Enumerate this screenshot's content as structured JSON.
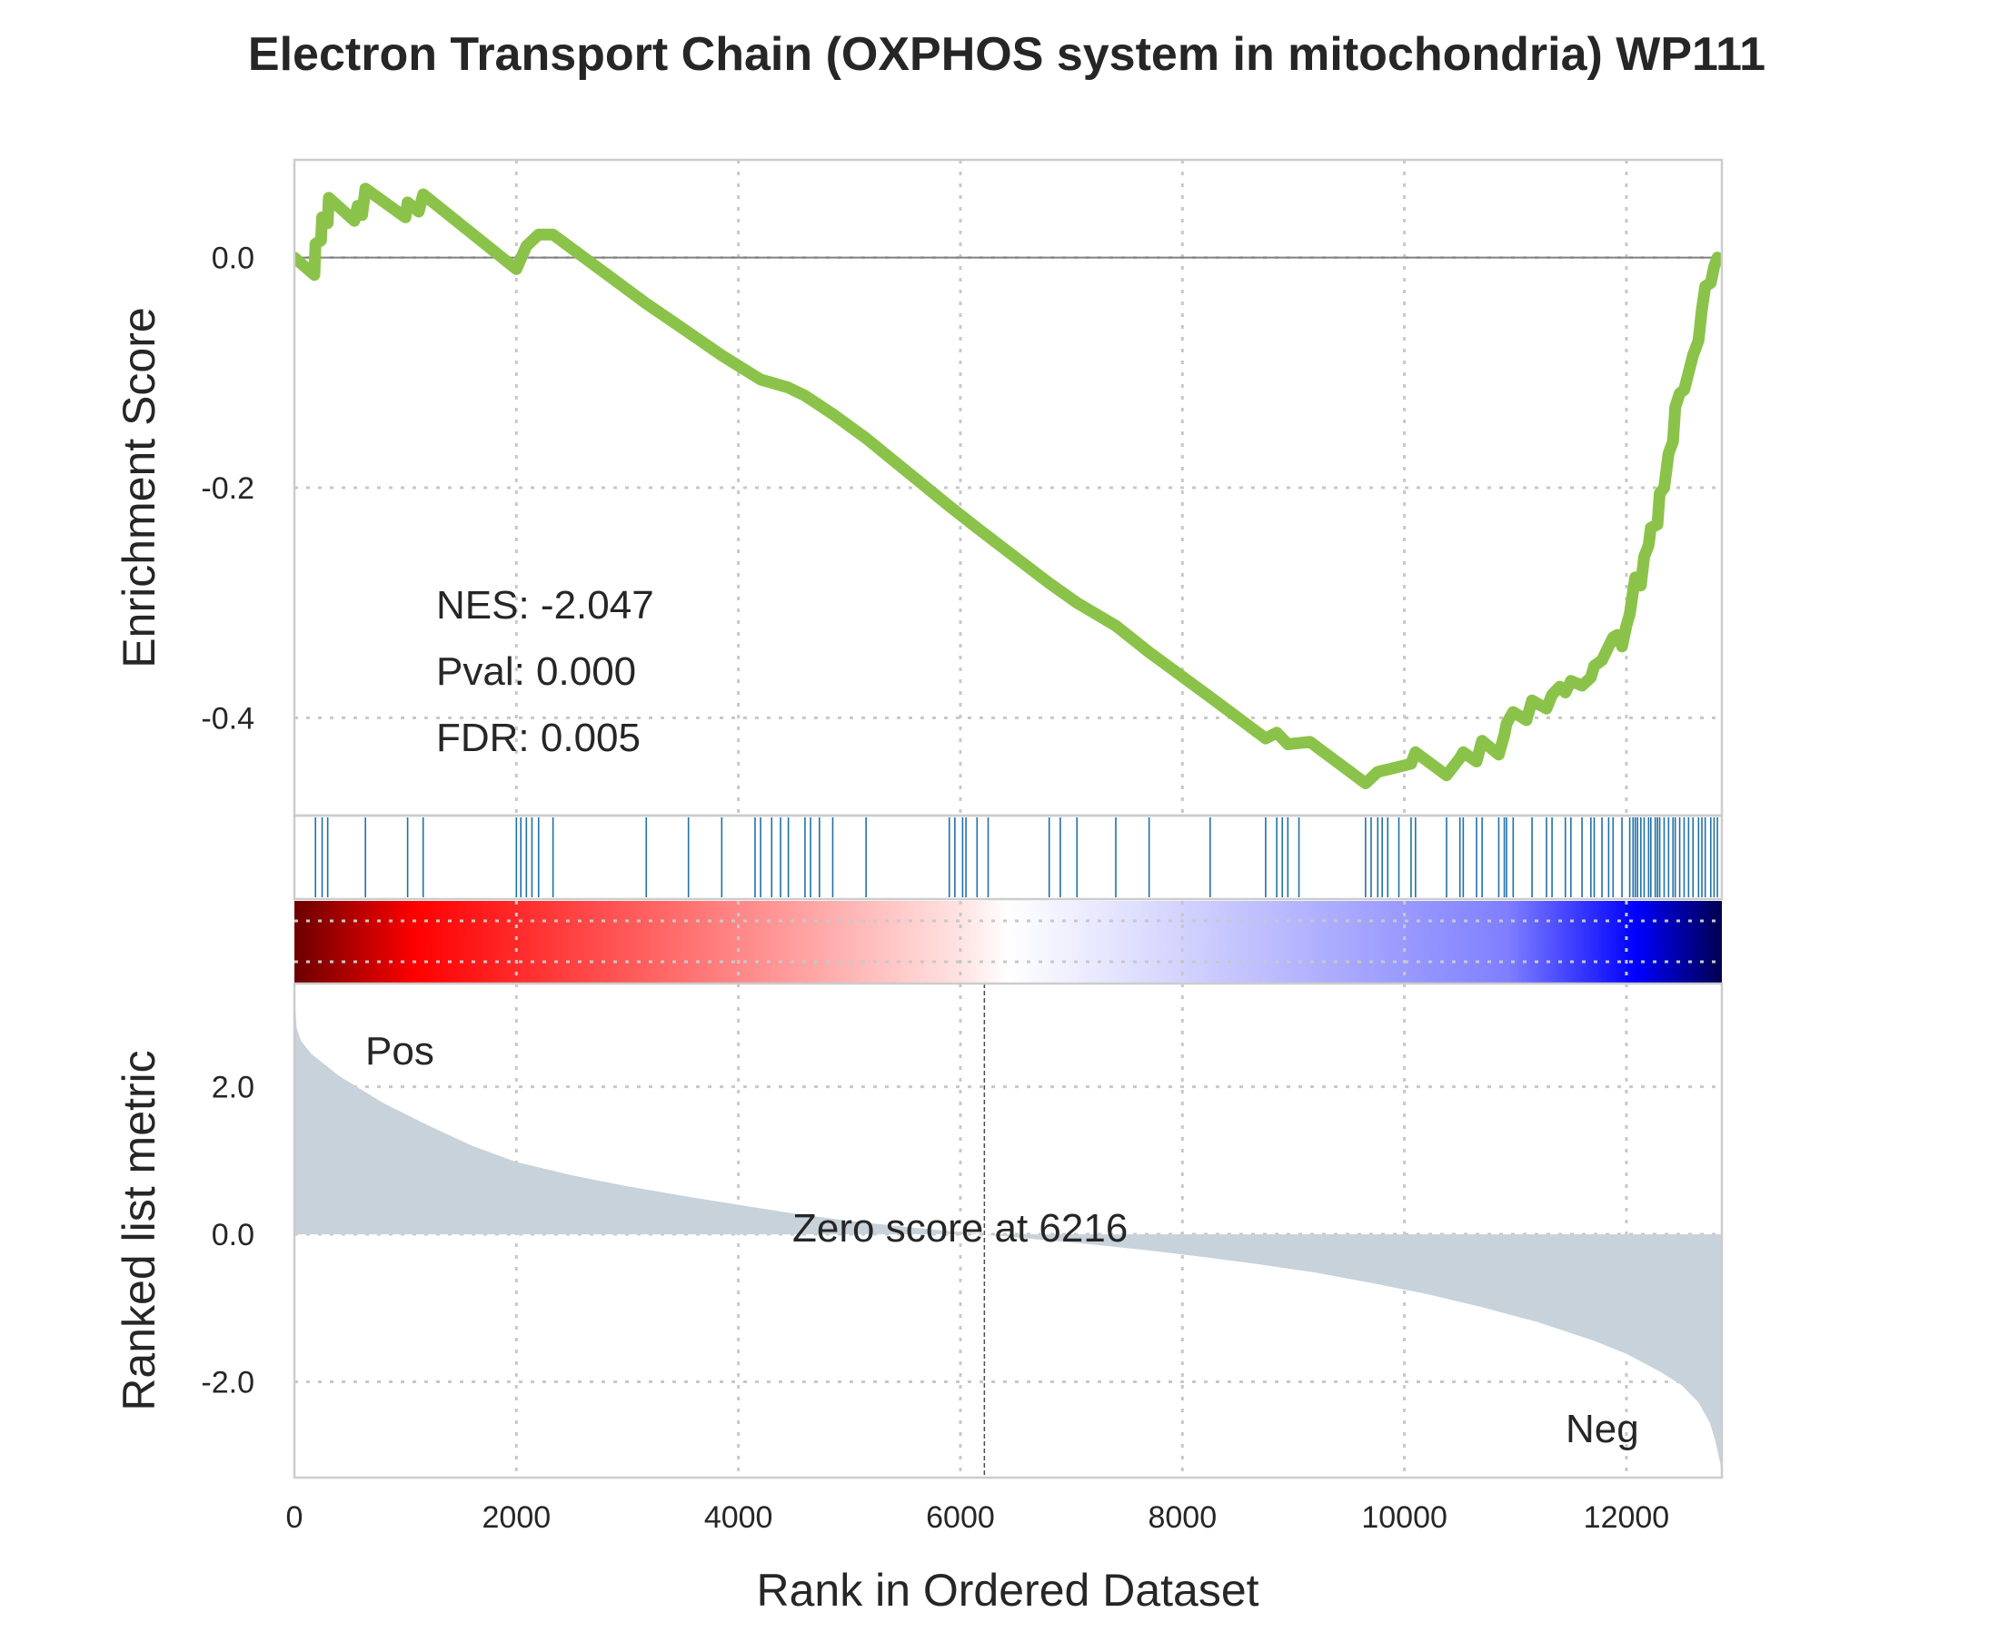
{
  "chart_data": {
    "type": "line",
    "title": "Electron Transport Chain (OXPHOS system in mitochondria) WP111",
    "xlabel": "Rank in Ordered Dataset",
    "xlim": [
      0,
      12860
    ],
    "x_ticks": [
      0,
      2000,
      4000,
      6000,
      8000,
      10000,
      12000
    ],
    "x_tick_labels": [
      "0",
      "2000",
      "4000",
      "6000",
      "8000",
      "10000",
      "12000"
    ],
    "grid": true,
    "enrichment": {
      "ylabel": "Enrichment Score",
      "ylim": [
        -0.485,
        0.085
      ],
      "y_ticks": [
        0.0,
        -0.2,
        -0.4
      ],
      "y_tick_labels": [
        "0.0",
        "-0.2",
        "-0.4"
      ],
      "line_color": "#8bc34a",
      "points": [
        [
          0,
          0.0
        ],
        [
          180,
          -0.015
        ],
        [
          190,
          0.012
        ],
        [
          240,
          0.015
        ],
        [
          250,
          0.035
        ],
        [
          300,
          0.03
        ],
        [
          310,
          0.052
        ],
        [
          540,
          0.032
        ],
        [
          570,
          0.045
        ],
        [
          610,
          0.037
        ],
        [
          640,
          0.06
        ],
        [
          1000,
          0.035
        ],
        [
          1020,
          0.048
        ],
        [
          1120,
          0.04
        ],
        [
          1160,
          0.055
        ],
        [
          2000,
          -0.01
        ],
        [
          2090,
          0.01
        ],
        [
          2200,
          0.02
        ],
        [
          2330,
          0.02
        ],
        [
          3170,
          -0.04
        ],
        [
          3550,
          -0.065
        ],
        [
          3850,
          -0.085
        ],
        [
          4150,
          -0.103
        ],
        [
          4200,
          -0.106
        ],
        [
          4450,
          -0.113
        ],
        [
          4600,
          -0.12
        ],
        [
          4850,
          -0.136
        ],
        [
          5150,
          -0.157
        ],
        [
          5900,
          -0.216
        ],
        [
          6150,
          -0.235
        ],
        [
          6800,
          -0.283
        ],
        [
          7050,
          -0.3
        ],
        [
          7400,
          -0.32
        ],
        [
          7700,
          -0.343
        ],
        [
          8250,
          -0.382
        ],
        [
          8750,
          -0.418
        ],
        [
          8850,
          -0.413
        ],
        [
          8950,
          -0.423
        ],
        [
          9150,
          -0.421
        ],
        [
          9650,
          -0.457
        ],
        [
          9760,
          -0.447
        ],
        [
          9850,
          -0.445
        ],
        [
          10060,
          -0.44
        ],
        [
          10100,
          -0.43
        ],
        [
          10380,
          -0.45
        ],
        [
          10500,
          -0.435
        ],
        [
          10530,
          -0.43
        ],
        [
          10650,
          -0.438
        ],
        [
          10700,
          -0.42
        ],
        [
          10850,
          -0.432
        ],
        [
          10900,
          -0.415
        ],
        [
          10920,
          -0.405
        ],
        [
          10980,
          -0.395
        ],
        [
          11100,
          -0.402
        ],
        [
          11150,
          -0.385
        ],
        [
          11280,
          -0.392
        ],
        [
          11330,
          -0.38
        ],
        [
          11400,
          -0.373
        ],
        [
          11450,
          -0.378
        ],
        [
          11500,
          -0.368
        ],
        [
          11600,
          -0.372
        ],
        [
          11680,
          -0.365
        ],
        [
          11710,
          -0.355
        ],
        [
          11780,
          -0.35
        ],
        [
          11840,
          -0.338
        ],
        [
          11880,
          -0.33
        ],
        [
          11920,
          -0.328
        ],
        [
          11960,
          -0.338
        ],
        [
          12000,
          -0.32
        ],
        [
          12030,
          -0.31
        ],
        [
          12060,
          -0.29
        ],
        [
          12080,
          -0.278
        ],
        [
          12130,
          -0.285
        ],
        [
          12160,
          -0.26
        ],
        [
          12200,
          -0.25
        ],
        [
          12220,
          -0.235
        ],
        [
          12280,
          -0.232
        ],
        [
          12300,
          -0.205
        ],
        [
          12340,
          -0.2
        ],
        [
          12380,
          -0.17
        ],
        [
          12420,
          -0.16
        ],
        [
          12440,
          -0.13
        ],
        [
          12480,
          -0.118
        ],
        [
          12520,
          -0.115
        ],
        [
          12560,
          -0.1
        ],
        [
          12600,
          -0.085
        ],
        [
          12650,
          -0.072
        ],
        [
          12680,
          -0.045
        ],
        [
          12710,
          -0.025
        ],
        [
          12760,
          -0.022
        ],
        [
          12790,
          -0.008
        ],
        [
          12820,
          0.0
        ]
      ],
      "hits": [
        190,
        250,
        300,
        640,
        1020,
        1160,
        2000,
        2040,
        2090,
        2140,
        2200,
        2330,
        3170,
        3550,
        3850,
        4150,
        4200,
        4300,
        4380,
        4450,
        4600,
        4650,
        4730,
        4850,
        5150,
        5900,
        5950,
        6020,
        6050,
        6150,
        6250,
        6800,
        6900,
        7050,
        7400,
        7700,
        8250,
        8750,
        8850,
        8900,
        8950,
        9050,
        9650,
        9700,
        9760,
        9800,
        9850,
        9950,
        10060,
        10100,
        10380,
        10500,
        10530,
        10650,
        10700,
        10850,
        10900,
        10920,
        10980,
        11150,
        11280,
        11330,
        11450,
        11500,
        11600,
        11680,
        11710,
        11780,
        11840,
        11880,
        11960,
        12030,
        12060,
        12080,
        12100,
        12130,
        12160,
        12200,
        12220,
        12260,
        12280,
        12300,
        12340,
        12380,
        12420,
        12440,
        12480,
        12520,
        12560,
        12600,
        12650,
        12680,
        12710,
        12760,
        12790,
        12820
      ],
      "hit_color": "#2171a8"
    },
    "colorbar": {
      "stops": [
        {
          "offset": 0,
          "color": "#6b0000"
        },
        {
          "offset": 0.085,
          "color": "#ff0000"
        },
        {
          "offset": 0.47,
          "color": "#ffe5e5"
        },
        {
          "offset": 0.5,
          "color": "#ffffff"
        },
        {
          "offset": 0.85,
          "color": "#7f7fff"
        },
        {
          "offset": 0.94,
          "color": "#0000ff"
        },
        {
          "offset": 1,
          "color": "#000050"
        }
      ]
    },
    "ranked_metric": {
      "ylabel": "Ranked list metric",
      "ylim": [
        -3.3,
        3.4
      ],
      "y_ticks": [
        2.0,
        0.0,
        -2.0
      ],
      "y_tick_labels": [
        "2.0",
        "0.0",
        "-2.0"
      ],
      "fill_color": "#c8d2da",
      "points": [
        [
          0,
          3.3
        ],
        [
          20,
          2.8
        ],
        [
          60,
          2.62
        ],
        [
          150,
          2.45
        ],
        [
          400,
          2.15
        ],
        [
          800,
          1.78
        ],
        [
          1200,
          1.48
        ],
        [
          1600,
          1.2
        ],
        [
          2000,
          0.98
        ],
        [
          2500,
          0.8
        ],
        [
          3000,
          0.65
        ],
        [
          3500,
          0.52
        ],
        [
          4000,
          0.4
        ],
        [
          4500,
          0.28
        ],
        [
          5000,
          0.18
        ],
        [
          5500,
          0.1
        ],
        [
          6216,
          0.0
        ],
        [
          6700,
          -0.07
        ],
        [
          7200,
          -0.14
        ],
        [
          7700,
          -0.22
        ],
        [
          8200,
          -0.31
        ],
        [
          8700,
          -0.41
        ],
        [
          9200,
          -0.52
        ],
        [
          9700,
          -0.66
        ],
        [
          10200,
          -0.81
        ],
        [
          10700,
          -0.99
        ],
        [
          11200,
          -1.19
        ],
        [
          11700,
          -1.44
        ],
        [
          12000,
          -1.62
        ],
        [
          12300,
          -1.86
        ],
        [
          12500,
          -2.05
        ],
        [
          12650,
          -2.28
        ],
        [
          12750,
          -2.55
        ],
        [
          12800,
          -2.8
        ],
        [
          12860,
          -3.2
        ]
      ],
      "zero_cross": 6216,
      "zero_label": "Zero score at 6216",
      "pos_label": "Pos",
      "neg_label": "Neg",
      "pos_color": "#ff0000",
      "neg_color": "#0000ff"
    },
    "stats": {
      "nes": "NES: -2.047",
      "pval": "Pval: 0.000",
      "fdr": "FDR: 0.005"
    }
  }
}
